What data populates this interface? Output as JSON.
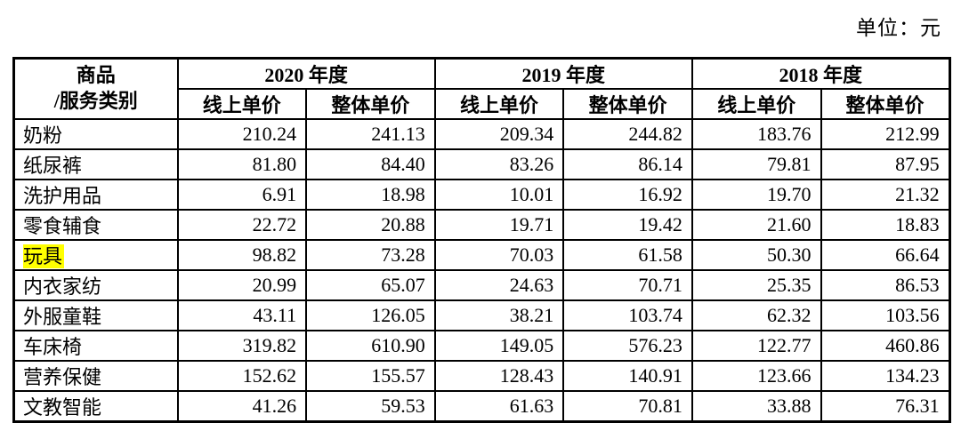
{
  "page": {
    "unit_label": "单位：元"
  },
  "table": {
    "category_header_line1": "商品",
    "category_header_line2": "/服务类别",
    "year_groups": [
      "2020 年度",
      "2019 年度",
      "2018 年度"
    ],
    "sub_headers": [
      "线上单价",
      "整体单价"
    ],
    "highlight_color": "#ffff00",
    "rows": [
      {
        "category": "奶粉",
        "highlighted": false,
        "values": [
          "210.24",
          "241.13",
          "209.34",
          "244.82",
          "183.76",
          "212.99"
        ]
      },
      {
        "category": "纸尿裤",
        "highlighted": false,
        "values": [
          "81.80",
          "84.40",
          "83.26",
          "86.14",
          "79.81",
          "87.95"
        ]
      },
      {
        "category": "洗护用品",
        "highlighted": false,
        "values": [
          "6.91",
          "18.98",
          "10.01",
          "16.92",
          "19.70",
          "21.32"
        ]
      },
      {
        "category": "零食辅食",
        "highlighted": false,
        "values": [
          "22.72",
          "20.88",
          "19.71",
          "19.42",
          "21.60",
          "18.83"
        ]
      },
      {
        "category": "玩具",
        "highlighted": true,
        "values": [
          "98.82",
          "73.28",
          "70.03",
          "61.58",
          "50.30",
          "66.64"
        ]
      },
      {
        "category": "内衣家纺",
        "highlighted": false,
        "values": [
          "20.99",
          "65.07",
          "24.63",
          "70.71",
          "25.35",
          "86.53"
        ]
      },
      {
        "category": "外服童鞋",
        "highlighted": false,
        "values": [
          "43.11",
          "126.05",
          "38.21",
          "103.74",
          "62.32",
          "103.56"
        ]
      },
      {
        "category": "车床椅",
        "highlighted": false,
        "values": [
          "319.82",
          "610.90",
          "149.05",
          "576.23",
          "122.77",
          "460.86"
        ]
      },
      {
        "category": "营养保健",
        "highlighted": false,
        "values": [
          "152.62",
          "155.57",
          "128.43",
          "140.91",
          "123.66",
          "134.23"
        ]
      },
      {
        "category": "文教智能",
        "highlighted": false,
        "values": [
          "41.26",
          "59.53",
          "61.63",
          "70.81",
          "33.88",
          "76.31"
        ]
      }
    ]
  }
}
